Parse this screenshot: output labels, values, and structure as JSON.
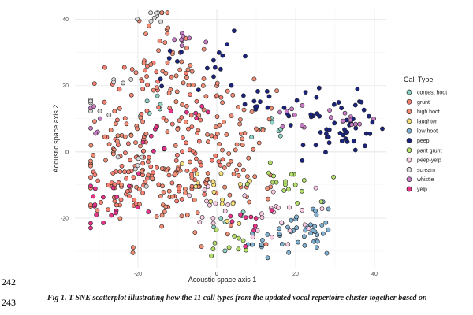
{
  "line_numbers": [
    "242",
    "243"
  ],
  "caption": "Fig 1. T-SNE scatterplot illustrating how the 11 call types from the updated vocal repertoire cluster together based on",
  "chart_data": {
    "type": "scatter",
    "title": "",
    "xlabel": "Acoustic space axis 1",
    "ylabel": "Acoustic space axis 2",
    "xlim": [
      -36,
      43
    ],
    "ylim": [
      -35,
      43
    ],
    "xticks": [
      -20,
      0,
      20,
      40
    ],
    "yticks": [
      -20,
      0,
      20,
      40
    ],
    "grid": true,
    "legend_title": "Call Type",
    "legend_position": "right",
    "series": [
      {
        "name": "contest hoot",
        "color": "#8dd3c7",
        "clusters": [
          [
            15,
            6,
            3,
            3,
            8
          ],
          [
            -17,
            15,
            3,
            3,
            6
          ],
          [
            3,
            -22,
            3,
            3,
            6
          ]
        ]
      },
      {
        "name": "grunt",
        "color": "#fb8072",
        "clusters": [
          [
            -12,
            5,
            8,
            8,
            45
          ],
          [
            -18,
            -10,
            7,
            5,
            40
          ],
          [
            -28,
            -9,
            5,
            5,
            30
          ],
          [
            -5,
            -5,
            5,
            5,
            20
          ],
          [
            -18,
            24,
            6,
            4,
            20
          ]
        ]
      },
      {
        "name": "high hoot",
        "color": "#f28d76",
        "clusters": [
          [
            -12,
            -12,
            9,
            8,
            60
          ],
          [
            5,
            8,
            5,
            6,
            40
          ],
          [
            -8,
            20,
            5,
            5,
            30
          ],
          [
            -15,
            33,
            4,
            5,
            20
          ],
          [
            -24,
            5,
            5,
            5,
            30
          ],
          [
            8,
            -8,
            5,
            5,
            20
          ]
        ]
      },
      {
        "name": "laughter",
        "color": "#f6e07a",
        "clusters": [
          [
            2,
            -15,
            4,
            4,
            10
          ],
          [
            -5,
            -8,
            4,
            3,
            6
          ]
        ]
      },
      {
        "name": "low hoot",
        "color": "#80b1d3",
        "clusters": [
          [
            22,
            -26,
            4,
            3,
            30
          ],
          [
            12,
            -27,
            4,
            3,
            12
          ],
          [
            26,
            -20,
            3,
            2,
            6
          ]
        ]
      },
      {
        "name": "peep",
        "color": "#1a237e",
        "clusters": [
          [
            33,
            5,
            5,
            3,
            30
          ],
          [
            25,
            15,
            8,
            3,
            20
          ],
          [
            2,
            27,
            4,
            4,
            12
          ],
          [
            -10,
            26,
            3,
            3,
            6
          ],
          [
            9,
            15,
            3,
            3,
            8
          ],
          [
            35,
            12,
            4,
            2,
            10
          ]
        ]
      },
      {
        "name": "pant grunt",
        "color": "#b3de69",
        "clusters": [
          [
            17,
            -10,
            4,
            3,
            18
          ],
          [
            2,
            -28,
            4,
            3,
            10
          ]
        ]
      },
      {
        "name": "peep-yelp",
        "color": "#fccde5",
        "clusters": [
          [
            15,
            -19,
            5,
            4,
            20
          ],
          [
            -3,
            -17,
            4,
            4,
            12
          ]
        ]
      },
      {
        "name": "scream",
        "color": "#d9d9d9",
        "clusters": [
          [
            -16,
            40,
            2,
            2,
            8
          ],
          [
            -33,
            13,
            3,
            2,
            6
          ],
          [
            -25,
            21,
            2,
            1,
            4
          ],
          [
            -20,
            -5,
            3,
            3,
            6
          ]
        ]
      },
      {
        "name": "whistle",
        "color": "#c77cc4",
        "clusters": [
          [
            -8,
            34,
            3,
            2,
            8
          ],
          [
            33,
            10,
            4,
            3,
            10
          ],
          [
            20,
            10,
            4,
            3,
            8
          ],
          [
            -30,
            10,
            3,
            3,
            6
          ]
        ]
      },
      {
        "name": "yelp",
        "color": "#e8338a",
        "clusters": [
          [
            -28,
            -15,
            5,
            5,
            18
          ],
          [
            8,
            -20,
            4,
            3,
            10
          ],
          [
            -15,
            0,
            4,
            4,
            8
          ],
          [
            -6,
            12,
            3,
            3,
            6
          ]
        ]
      }
    ]
  }
}
